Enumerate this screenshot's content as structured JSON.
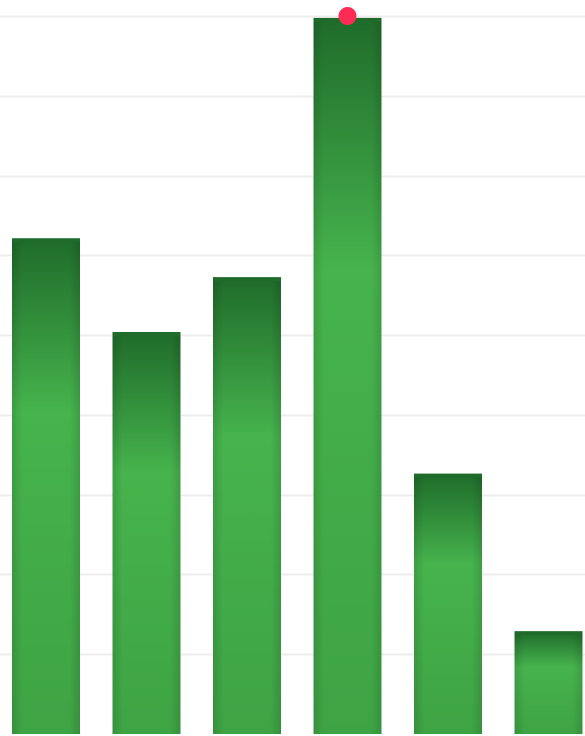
{
  "chart_data": {
    "type": "bar",
    "categories": [
      "",
      "",
      "",
      "",
      "",
      ""
    ],
    "values": [
      497,
      403,
      458,
      718,
      261,
      103
    ],
    "ylim": [
      0,
      736
    ],
    "grid": true,
    "highlight": {
      "index": 3,
      "color": "#ff2d55"
    },
    "colors": {
      "bar_top": "#1f6b2a",
      "bar_mid": "#46b34d",
      "bar_bottom": "#3ea344",
      "grid": "#ececec",
      "background": "#ffffff"
    }
  }
}
